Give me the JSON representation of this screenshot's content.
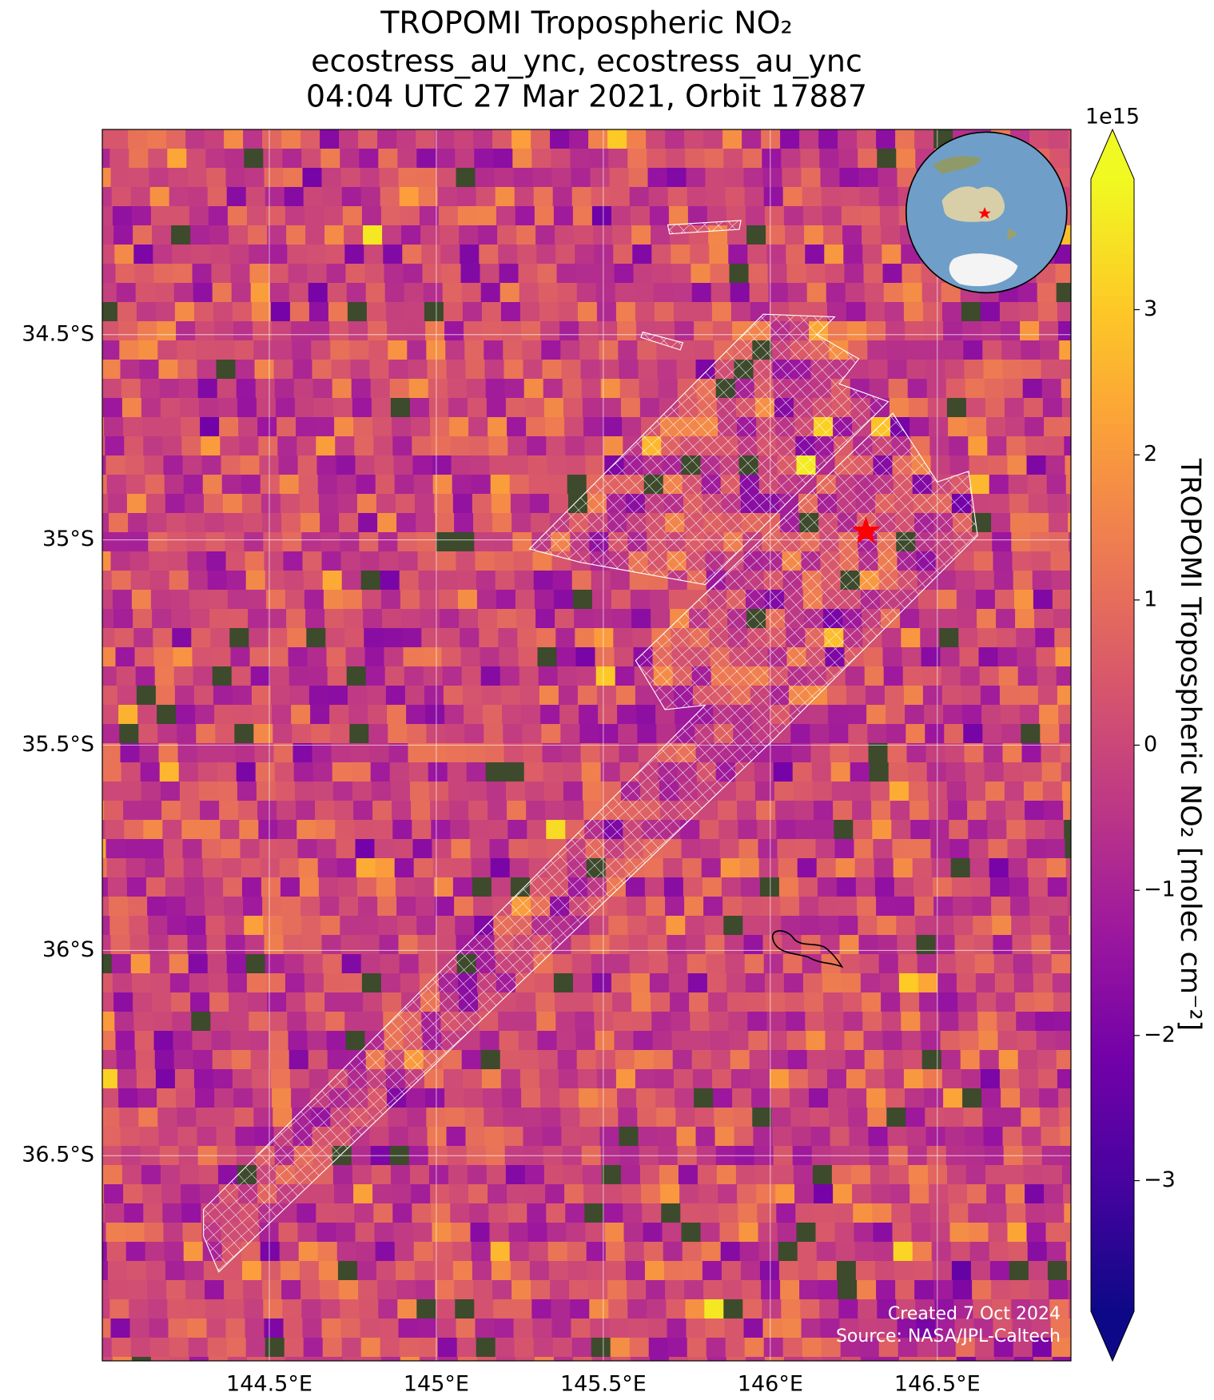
{
  "chart_data": {
    "type": "map",
    "title": [
      "TROPOMI Tropospheric NO₂",
      "ecostress_au_ync, ecostress_au_ync",
      "04:04 UTC 27 Mar 2021, Orbit 17887"
    ],
    "xlim": [
      144.0,
      146.9
    ],
    "ylim": [
      -37.0,
      -34.0
    ],
    "xticks": [
      {
        "value": 144.5,
        "label": "144.5°E"
      },
      {
        "value": 145.0,
        "label": "145°E"
      },
      {
        "value": 145.5,
        "label": "145.5°E"
      },
      {
        "value": 146.0,
        "label": "146°E"
      },
      {
        "value": 146.5,
        "label": "146.5°E"
      }
    ],
    "yticks": [
      {
        "value": -34.5,
        "label": "34.5°S"
      },
      {
        "value": -35.0,
        "label": "35°S"
      },
      {
        "value": -35.5,
        "label": "35.5°S"
      },
      {
        "value": -36.0,
        "label": "36°S"
      },
      {
        "value": -36.5,
        "label": "36.5°S"
      }
    ],
    "grid": true,
    "colorbar": {
      "label": "TROPOMI Tropospheric NO₂ [molec cm⁻²]",
      "exponent_label": "1e15",
      "colormap": "plasma",
      "clim": [
        -3.9,
        3.9
      ],
      "ticks": [
        {
          "value": -3,
          "label": "−3"
        },
        {
          "value": -2,
          "label": "−2"
        },
        {
          "value": -1,
          "label": "−1"
        },
        0,
        1,
        2,
        3
      ]
    },
    "footer": [
      "Created 7 Oct 2024",
      "Source: NASA/JPL-Caltech"
    ]
  }
}
